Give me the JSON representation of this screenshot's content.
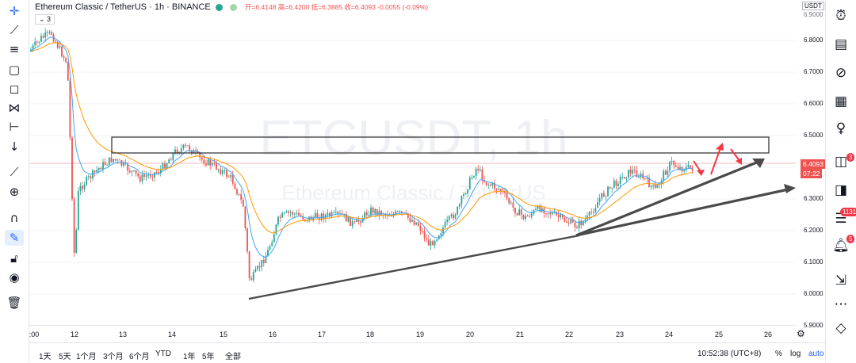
{
  "header": {
    "symbol": "Ethereum Classic / TetherUS",
    "interval": "1h",
    "exchange": "BINANCE",
    "ohlc": "开=6.4148 高=6.4200 低=6.3885 收=6.4093 -0.0055 (-0.09%)",
    "indicator_count": "3"
  },
  "watermark": {
    "symbol": "ETCUSDT, 1h",
    "name": "Ethereum Classic / TetherUS"
  },
  "price_axis": {
    "currency": "USDT",
    "ticks": [
      "6.8000",
      "6.7000",
      "6.6000",
      "6.5000",
      "6.4000",
      "6.3000",
      "6.2000",
      "6.1000",
      "6.0000",
      "5.9000"
    ],
    "top_partial": "6.9000",
    "last_price": "6.4093",
    "countdown": "07:22"
  },
  "time_axis": {
    "labels": [
      ":00",
      "12",
      "13",
      "14",
      "15",
      "16",
      "17",
      "18",
      "19",
      "20",
      "21",
      "22",
      "23",
      "24",
      "25",
      "26"
    ]
  },
  "bottom_bar": {
    "periods": [
      "1天",
      "5天",
      "1个月",
      "3个月",
      "6个月",
      "YTD",
      "1年",
      "5年",
      "全部"
    ],
    "time": "10:52:38 (UTC+8)",
    "percent": "%",
    "log": "log",
    "auto": "auto"
  },
  "right_toolbar": {
    "badges": [
      "3",
      "1131",
      "5"
    ]
  },
  "colors": {
    "up": "#26a69a",
    "down": "#ef5350",
    "ema_fast": "#42a5f5",
    "ema_slow": "#ff9800",
    "accent": "#2962ff",
    "trendline": "#4a4a4a",
    "arrows": "#f23645"
  },
  "icons": [
    "crosshair-icon",
    "trendline-icon",
    "fib-icon",
    "rect-icon",
    "note-icon",
    "pattern-icon",
    "measure-icon",
    "arrow-down-icon",
    "ruler-icon",
    "zoom-in-icon",
    "magnet-icon",
    "lock-draw-icon",
    "lock-icon",
    "eye-icon",
    "trash-icon"
  ]
}
